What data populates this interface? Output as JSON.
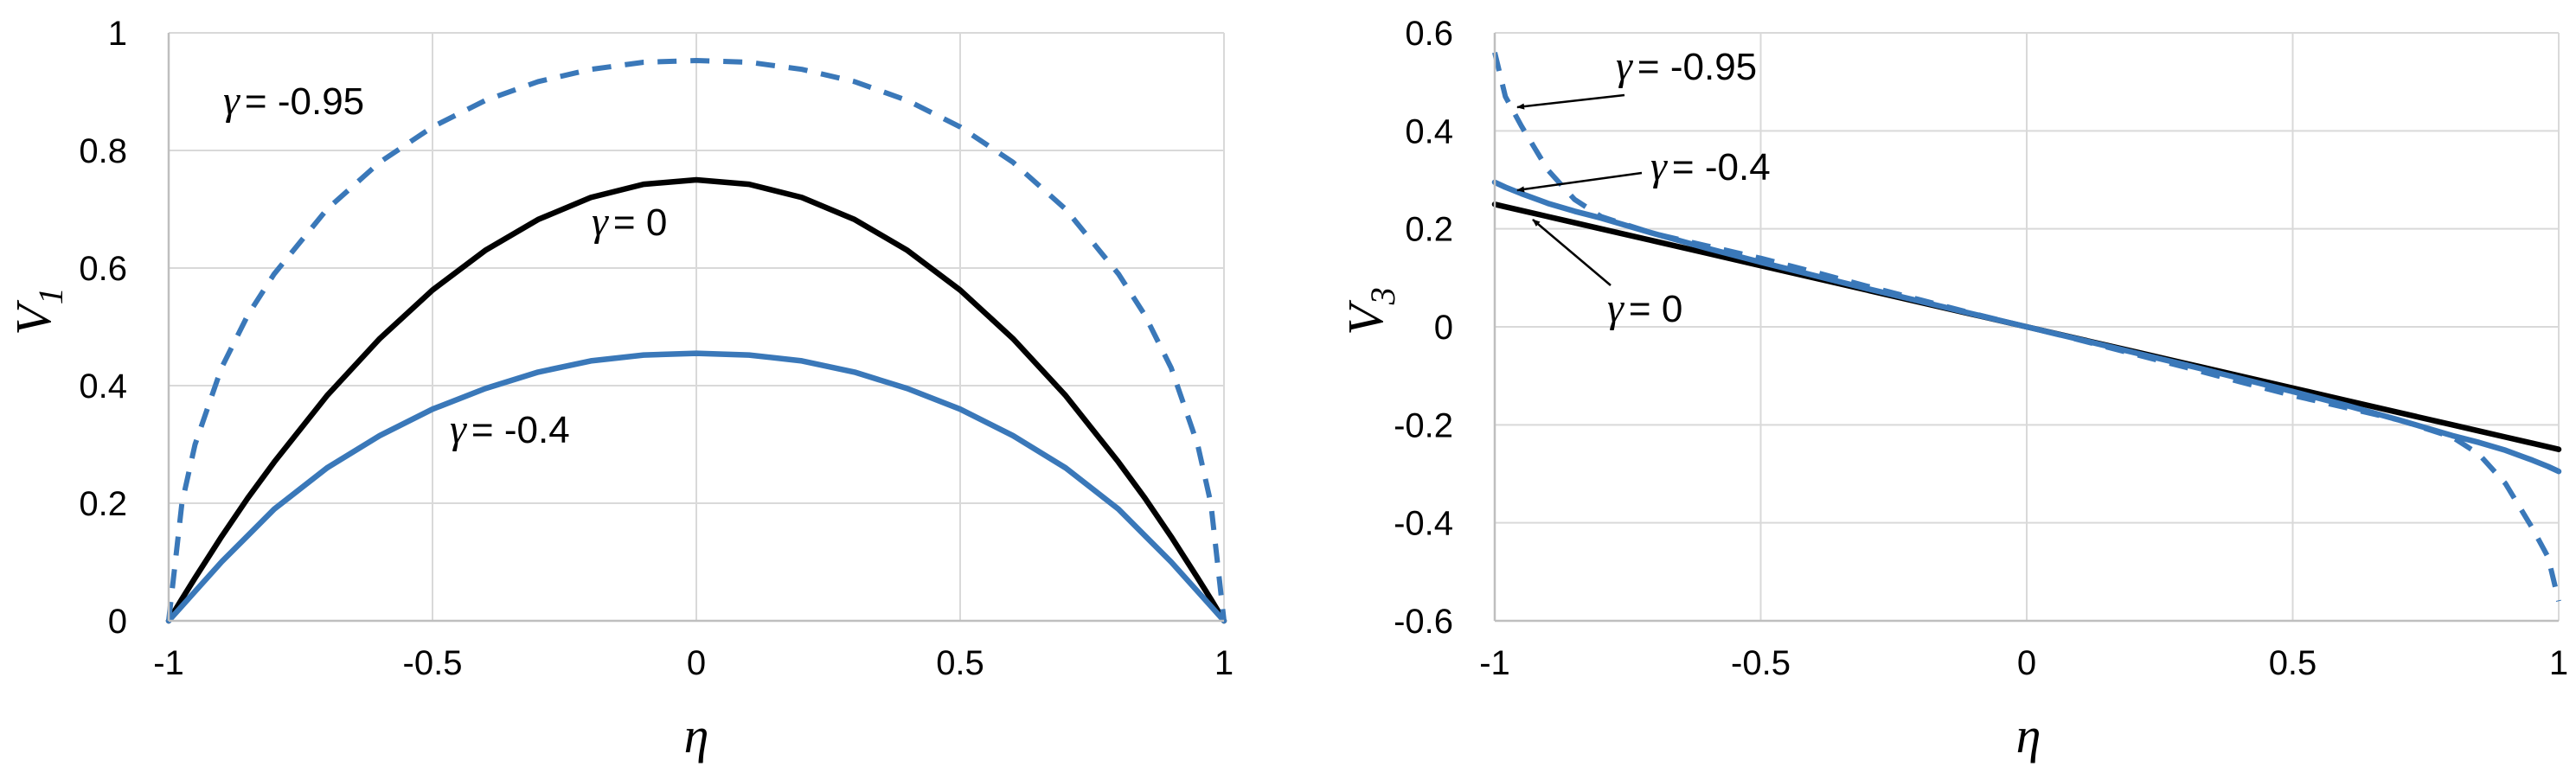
{
  "chart_data": [
    {
      "type": "line",
      "title": "",
      "xlabel": "η",
      "ylabel": "V",
      "ylabel_sub": "1",
      "xlim": [
        -1,
        1
      ],
      "ylim": [
        0,
        1
      ],
      "x_ticks": [
        -1,
        -0.5,
        0,
        0.5,
        1
      ],
      "x_tick_labels": [
        "-1",
        "-0.5",
        "0",
        "0.5",
        "1"
      ],
      "y_ticks": [
        0,
        0.2,
        0.4,
        0.6,
        0.8,
        1
      ],
      "y_tick_labels": [
        "0",
        "0.2",
        "0.4",
        "0.6",
        "0.8",
        "1"
      ],
      "grid": true,
      "x": [
        -1,
        -0.975,
        -0.95,
        -0.9,
        -0.85,
        -0.8,
        -0.7,
        -0.6,
        -0.5,
        -0.4,
        -0.3,
        -0.2,
        -0.1,
        0,
        0.1,
        0.2,
        0.3,
        0.4,
        0.5,
        0.6,
        0.7,
        0.8,
        0.85,
        0.9,
        0.95,
        0.975,
        1
      ],
      "series": [
        {
          "name": "γ = 0",
          "color": "#000000",
          "dash": false,
          "values": [
            0,
            0.037,
            0.073,
            0.143,
            0.209,
            0.27,
            0.383,
            0.48,
            0.5625,
            0.63,
            0.6825,
            0.72,
            0.7425,
            0.75,
            0.7425,
            0.72,
            0.6825,
            0.63,
            0.5625,
            0.48,
            0.383,
            0.27,
            0.209,
            0.143,
            0.073,
            0.037,
            0
          ]
        },
        {
          "name": "γ = -0.4",
          "color": "#3a78b9",
          "dash": false,
          "values": [
            0,
            0.025,
            0.05,
            0.1,
            0.145,
            0.19,
            0.26,
            0.315,
            0.36,
            0.395,
            0.423,
            0.442,
            0.452,
            0.455,
            0.452,
            0.442,
            0.423,
            0.395,
            0.36,
            0.315,
            0.26,
            0.19,
            0.145,
            0.1,
            0.05,
            0.025,
            0
          ]
        },
        {
          "name": "γ = -0.95",
          "color": "#3a78b9",
          "dash": true,
          "values": [
            0,
            0.2,
            0.3,
            0.43,
            0.52,
            0.59,
            0.7,
            0.78,
            0.84,
            0.885,
            0.917,
            0.938,
            0.95,
            0.953,
            0.95,
            0.938,
            0.917,
            0.885,
            0.84,
            0.78,
            0.7,
            0.59,
            0.52,
            0.43,
            0.3,
            0.2,
            0
          ]
        }
      ],
      "annotations": [
        {
          "gamma": "γ",
          "text": "= -0.95",
          "target_series": "γ = -0.95"
        },
        {
          "gamma": "γ",
          "text": "= 0",
          "target_series": "γ = 0"
        },
        {
          "gamma": "γ",
          "text": "= -0.4",
          "target_series": "γ = -0.4"
        }
      ]
    },
    {
      "type": "line",
      "title": "",
      "xlabel": "η",
      "ylabel": "V",
      "ylabel_sub": "3",
      "xlim": [
        -1,
        1
      ],
      "ylim": [
        -0.6,
        0.6
      ],
      "x_ticks": [
        -1,
        -0.5,
        0,
        0.5,
        1
      ],
      "x_tick_labels": [
        "-1",
        "-0.5",
        "0",
        "0.5",
        "1"
      ],
      "y_ticks": [
        -0.6,
        -0.4,
        -0.2,
        0,
        0.2,
        0.4,
        0.6
      ],
      "y_tick_labels": [
        "-0.6",
        "-0.4",
        "-0.2",
        "0",
        "0.2",
        "0.4",
        "0.6"
      ],
      "grid": true,
      "x": [
        -1,
        -0.98,
        -0.95,
        -0.9,
        -0.85,
        -0.8,
        -0.7,
        -0.6,
        -0.5,
        -0.4,
        -0.3,
        -0.2,
        -0.1,
        0,
        0.1,
        0.2,
        0.3,
        0.4,
        0.5,
        0.6,
        0.7,
        0.8,
        0.85,
        0.9,
        0.95,
        0.98,
        1
      ],
      "series": [
        {
          "name": "γ = 0",
          "color": "#000000",
          "dash": false,
          "values": [
            0.25,
            0.245,
            0.2375,
            0.225,
            0.2125,
            0.2,
            0.175,
            0.15,
            0.125,
            0.1,
            0.075,
            0.05,
            0.025,
            0,
            -0.025,
            -0.05,
            -0.075,
            -0.1,
            -0.125,
            -0.15,
            -0.175,
            -0.2,
            -0.2125,
            -0.225,
            -0.2375,
            -0.245,
            -0.25
          ]
        },
        {
          "name": "γ = -0.4",
          "color": "#3a78b9",
          "dash": false,
          "values": [
            0.295,
            0.285,
            0.272,
            0.252,
            0.236,
            0.222,
            0.19,
            0.16,
            0.132,
            0.105,
            0.078,
            0.052,
            0.026,
            0,
            -0.026,
            -0.052,
            -0.078,
            -0.105,
            -0.132,
            -0.16,
            -0.19,
            -0.222,
            -0.236,
            -0.252,
            -0.272,
            -0.285,
            -0.295
          ]
        },
        {
          "name": "γ = -0.95",
          "color": "#3a78b9",
          "dash": true,
          "values": [
            0.56,
            0.47,
            0.41,
            0.32,
            0.26,
            0.225,
            0.19,
            0.165,
            0.14,
            0.112,
            0.083,
            0.055,
            0.027,
            0,
            -0.027,
            -0.055,
            -0.083,
            -0.112,
            -0.14,
            -0.165,
            -0.19,
            -0.225,
            -0.26,
            -0.32,
            -0.41,
            -0.47,
            -0.56
          ]
        }
      ],
      "annotations": [
        {
          "gamma": "γ",
          "text": "= -0.95",
          "target_series": "γ = -0.95"
        },
        {
          "gamma": "γ",
          "text": "= -0.4",
          "target_series": "γ = -0.4"
        },
        {
          "gamma": "γ",
          "text": "= 0",
          "target_series": "γ = 0"
        }
      ]
    }
  ]
}
